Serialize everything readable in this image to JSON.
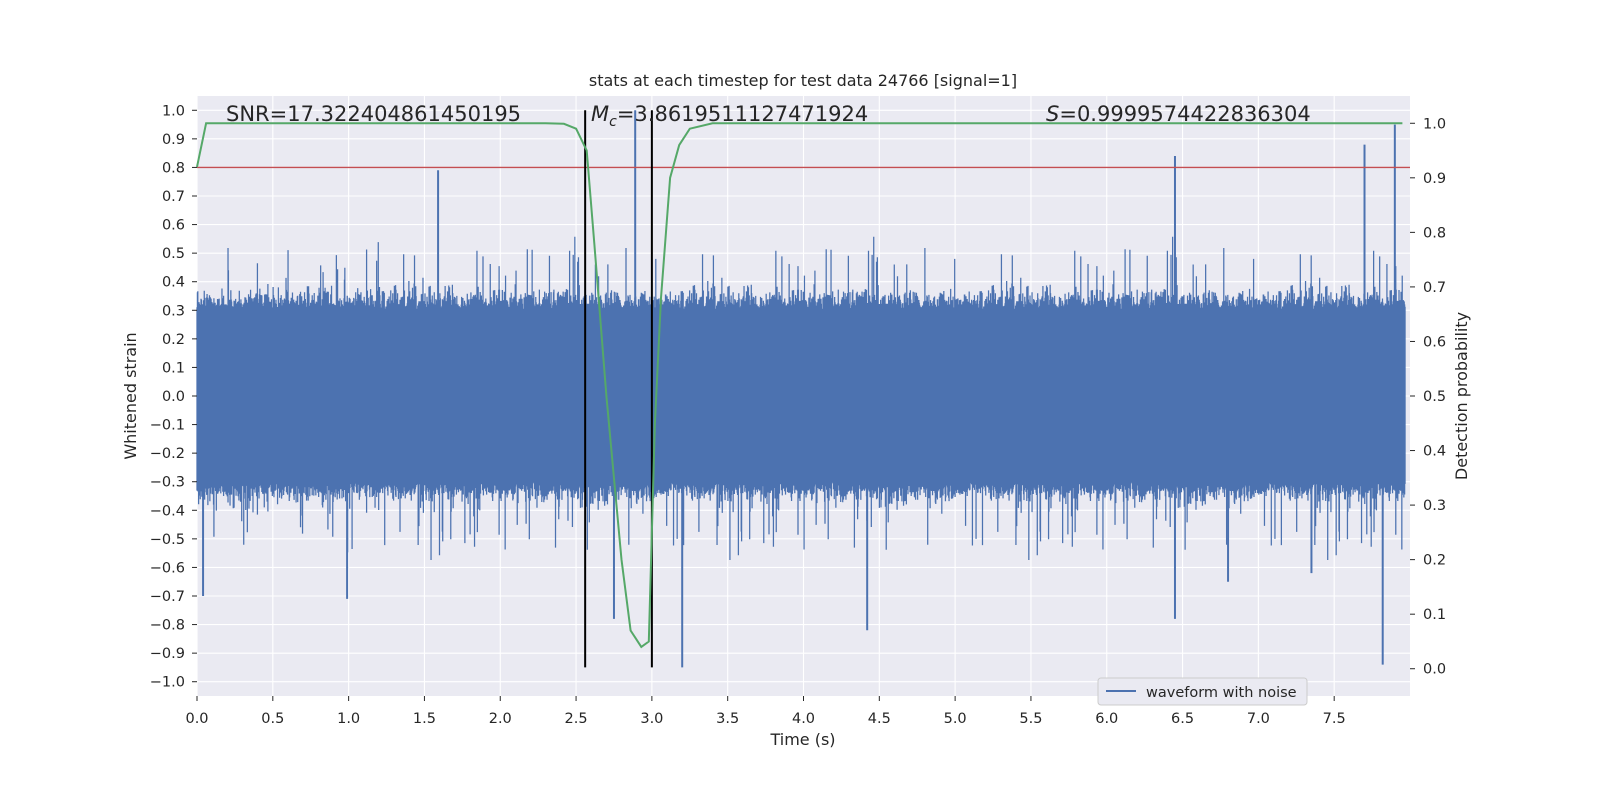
{
  "chart_data": {
    "type": "line",
    "title": "stats at each timestep for test data 24766 [signal=1]",
    "xlabel": "Time (s)",
    "ylabel_left": "Whitened strain",
    "ylabel_right": "Detection probability",
    "xlim": [
      0.0,
      8.0
    ],
    "ylim_left": [
      -1.05,
      1.05
    ],
    "ylim_right": [
      -0.05,
      1.05
    ],
    "x_ticks": [
      "0.0",
      "0.5",
      "1.0",
      "1.5",
      "2.0",
      "2.5",
      "3.0",
      "3.5",
      "4.0",
      "4.5",
      "5.0",
      "5.5",
      "6.0",
      "6.5",
      "7.0",
      "7.5"
    ],
    "y_ticks_left": [
      "1.0",
      "0.9",
      "0.8",
      "0.7",
      "0.6",
      "0.5",
      "0.4",
      "0.3",
      "0.2",
      "0.1",
      "0.0",
      "−0.1",
      "−0.2",
      "−0.3",
      "−0.4",
      "−0.5",
      "−0.6",
      "−0.7",
      "−0.8",
      "−0.9",
      "−1.0"
    ],
    "y_ticks_right": [
      "1.0",
      "0.9",
      "0.8",
      "0.7",
      "0.6",
      "0.5",
      "0.4",
      "0.3",
      "0.2",
      "0.1",
      "0.0"
    ],
    "annotations": {
      "snr": "SNR=17.322404861450195",
      "mc_symbol": "M",
      "mc_sub": "c",
      "mc_value": "=3.8619511127471924",
      "s_symbol": "S",
      "s_value": "=0.9999574422836304"
    },
    "threshold": {
      "value": 0.8,
      "axis": "left",
      "color": "#c44e52"
    },
    "vlines": [
      {
        "x": 2.56,
        "y0": -0.95,
        "y1": 1.0,
        "color": "#000000"
      },
      {
        "x": 3.0,
        "y0": -0.95,
        "y1": 1.0,
        "color": "#000000"
      }
    ],
    "series": [
      {
        "name": "waveform with noise",
        "axis": "left",
        "color": "#4c72b0",
        "kind": "dense-noise",
        "approx_envelope": [
          -0.95,
          1.0
        ],
        "spikes": [
          {
            "x": 2.89,
            "y": 1.0
          },
          {
            "x": 7.9,
            "y": 0.95
          },
          {
            "x": 7.7,
            "y": 0.88
          },
          {
            "x": 7.82,
            "y": -0.94
          },
          {
            "x": 3.2,
            "y": -0.95
          },
          {
            "x": 4.42,
            "y": -0.82
          },
          {
            "x": 6.45,
            "y": -0.78
          },
          {
            "x": 6.45,
            "y": 0.84
          },
          {
            "x": 1.59,
            "y": 0.79
          },
          {
            "x": 2.75,
            "y": -0.78
          },
          {
            "x": 0.99,
            "y": -0.71
          },
          {
            "x": 0.04,
            "y": -0.7
          },
          {
            "x": 7.35,
            "y": -0.62
          },
          {
            "x": 6.8,
            "y": -0.65
          }
        ]
      },
      {
        "name": "",
        "axis": "right",
        "color": "#55a868",
        "x": [
          0.0,
          0.06,
          0.2,
          0.5,
          1.0,
          1.5,
          2.0,
          2.3,
          2.42,
          2.5,
          2.57,
          2.62,
          2.7,
          2.8,
          2.86,
          2.93,
          2.98,
          3.02,
          3.06,
          3.12,
          3.18,
          3.25,
          3.4,
          4.0,
          5.0,
          6.0,
          7.0,
          7.5,
          7.95
        ],
        "values": [
          0.92,
          1.0,
          1.0,
          1.0,
          1.0,
          1.0,
          1.0,
          1.0,
          0.999,
          0.99,
          0.95,
          0.78,
          0.5,
          0.2,
          0.07,
          0.04,
          0.05,
          0.45,
          0.68,
          0.9,
          0.96,
          0.99,
          1.0,
          1.0,
          1.0,
          1.0,
          1.0,
          1.0,
          1.0
        ]
      }
    ],
    "legend": {
      "placement": "lower-right",
      "entries": [
        "waveform with noise"
      ]
    },
    "grid": true,
    "colors": {
      "background": "#eaeaf2",
      "grid": "#ffffff"
    }
  }
}
